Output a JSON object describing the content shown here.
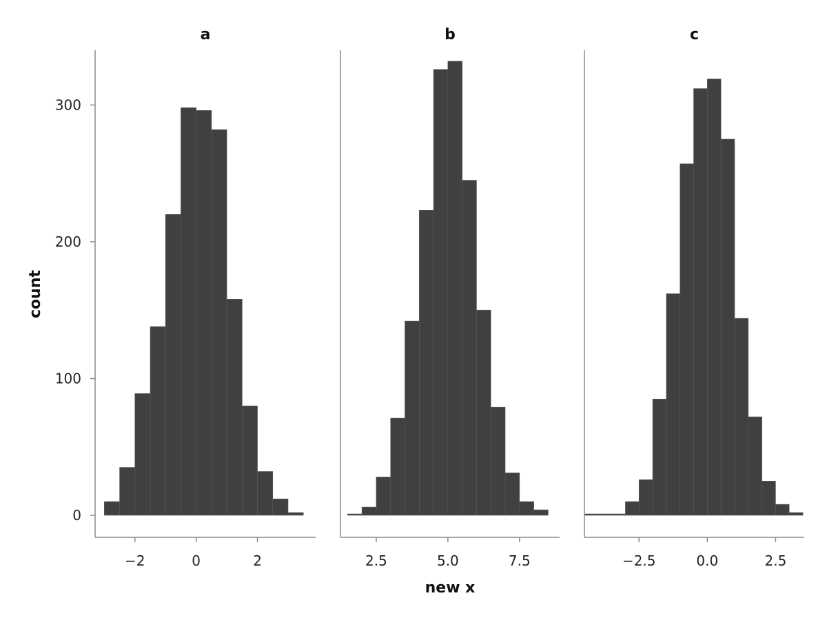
{
  "chart_data": {
    "type": "bar",
    "subtype": "histogram-facets",
    "xlabel": "new x",
    "ylabel": "count",
    "ylim": [
      0,
      340
    ],
    "yticks": [
      0,
      100,
      200,
      300
    ],
    "grid": false,
    "bar_color": "#404040",
    "panels": [
      {
        "title": "a",
        "xlim": [
          -3.3,
          3.9
        ],
        "xticks": [
          -2,
          0,
          2
        ],
        "xtick_labels": [
          "−2",
          "0",
          "2"
        ],
        "bin_edges": [
          -3.0,
          -2.5,
          -2.0,
          -1.5,
          -1.0,
          -0.5,
          0.0,
          0.5,
          1.0,
          1.5,
          2.0,
          2.5,
          3.0,
          3.5
        ],
        "counts": [
          10,
          35,
          89,
          138,
          220,
          298,
          296,
          282,
          158,
          80,
          32,
          12,
          2
        ]
      },
      {
        "title": "b",
        "xlim": [
          1.25,
          8.9
        ],
        "xticks": [
          2.5,
          5.0,
          7.5
        ],
        "xtick_labels": [
          "2.5",
          "5.0",
          "7.5"
        ],
        "bin_edges": [
          1.5,
          2.0,
          2.5,
          3.0,
          3.5,
          4.0,
          4.5,
          5.0,
          5.5,
          6.0,
          6.5,
          7.0,
          7.5,
          8.0,
          8.5
        ],
        "counts": [
          1,
          6,
          28,
          71,
          142,
          223,
          326,
          332,
          245,
          150,
          79,
          31,
          10,
          4
        ]
      },
      {
        "title": "c",
        "xlim": [
          -4.5,
          3.55
        ],
        "xticks": [
          -2.5,
          0.0,
          2.5
        ],
        "xtick_labels": [
          "−2.5",
          "0.0",
          "2.5"
        ],
        "bin_edges": [
          -4.5,
          -4.0,
          -3.5,
          -3.0,
          -2.5,
          -2.0,
          -1.5,
          -1.0,
          -0.5,
          0.0,
          0.5,
          1.0,
          1.5,
          2.0,
          2.5,
          3.0,
          3.5
        ],
        "counts": [
          1,
          1,
          1,
          10,
          26,
          85,
          162,
          257,
          312,
          319,
          275,
          144,
          72,
          25,
          8,
          2
        ]
      }
    ]
  }
}
